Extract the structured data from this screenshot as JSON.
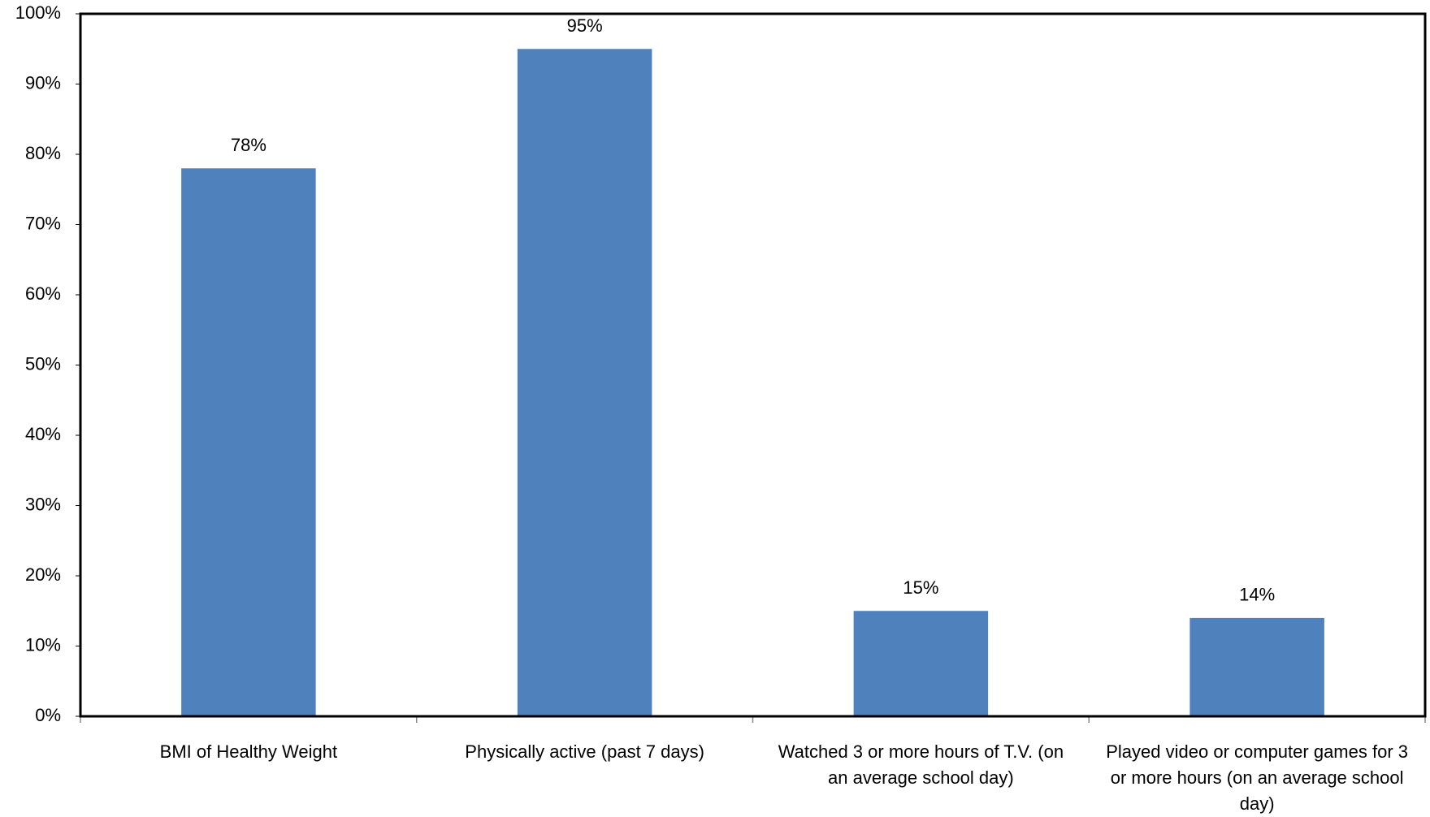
{
  "chart_data": {
    "type": "bar",
    "categories": [
      "BMI of Healthy Weight",
      "Physically active (past 7 days)",
      "Watched 3 or more hours of T.V. (on an average school day)",
      "Played video or computer games for 3 or more hours (on an average school day)"
    ],
    "values": [
      78,
      95,
      15,
      14
    ],
    "value_labels": [
      "78%",
      "95%",
      "15%",
      "14%"
    ],
    "color": "#4f81bd",
    "ylim": [
      0,
      100
    ],
    "yticks": [
      {
        "value": 0,
        "label": "0%"
      },
      {
        "value": 10,
        "label": "10%"
      },
      {
        "value": 20,
        "label": "20%"
      },
      {
        "value": 30,
        "label": "30%"
      },
      {
        "value": 40,
        "label": "40%"
      },
      {
        "value": 50,
        "label": "50%"
      },
      {
        "value": 60,
        "label": "60%"
      },
      {
        "value": 70,
        "label": "70%"
      },
      {
        "value": 80,
        "label": "80%"
      },
      {
        "value": 90,
        "label": "90%"
      },
      {
        "value": 100,
        "label": "100%"
      }
    ]
  }
}
